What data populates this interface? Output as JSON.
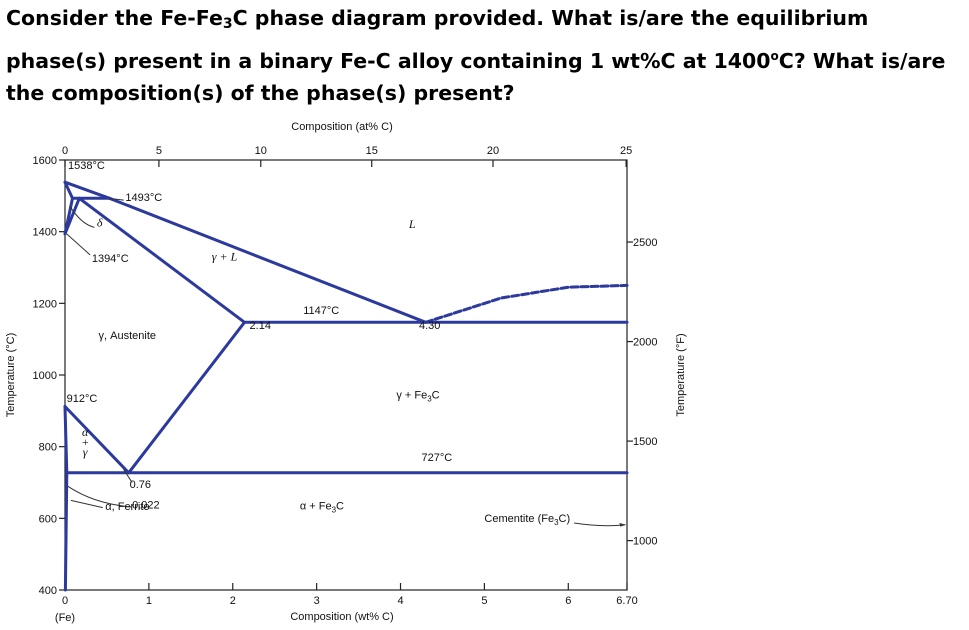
{
  "question": {
    "line1": "Consider the Fe-Fe",
    "sub1": "3",
    "line1b": "C phase diagram provided.  What is/are the equilibrium phase(s) present in a binary Fe-C alloy containing 1 wt%C at 1400",
    "deg": "o",
    "line1c": "C?  What is/are the composition(s) of the phase(s) present?"
  },
  "chart_data": {
    "type": "phase-diagram",
    "title": "",
    "top_axis": {
      "label": "Composition (at% C)",
      "ticks": [
        "0",
        "5",
        "10",
        "15",
        "20",
        "25"
      ],
      "values": [
        0,
        5,
        10,
        15,
        20,
        25
      ]
    },
    "bottom_axis": {
      "label": "Composition (wt% C)",
      "ticks": [
        "0",
        "1",
        "2",
        "3",
        "4",
        "5",
        "6",
        "6.70"
      ],
      "values": [
        0,
        1,
        2,
        3,
        4,
        5,
        6,
        6.7
      ],
      "origin_note": "(Fe)"
    },
    "left_axis": {
      "label": "Temperature (°C)",
      "ticks": [
        "400",
        "600",
        "800",
        "1000",
        "1200",
        "1400",
        "1600"
      ],
      "values": [
        400,
        600,
        800,
        1000,
        1200,
        1400,
        1600
      ],
      "range": [
        400,
        1600
      ]
    },
    "right_axis": {
      "label": "Temperature (°F)",
      "ticks": [
        "1000",
        "1500",
        "2000",
        "2500"
      ],
      "values": [
        1000,
        1500,
        2000,
        2500
      ]
    },
    "composition_range_wt": [
      0,
      6.7
    ],
    "phase_labels": [
      "L",
      "δ",
      "γ + L",
      "γ, Austenite",
      "γ + Fe3C",
      "α + Fe3C",
      "α, Ferrite",
      "Cementite (Fe3C)"
    ],
    "phase_label_parts": {
      "gamma_fe3c_a": "γ + Fe",
      "gamma_fe3c_sub": "3",
      "gamma_fe3c_b": "C",
      "alpha_fe3c_a": "α + Fe",
      "alpha_fe3c_sub": "3",
      "alpha_fe3c_b": "C",
      "cementite_a": "Cementite (Fe",
      "cementite_sub": "3",
      "cementite_b": "C)",
      "alpha_gamma_col": [
        "α",
        "+",
        "γ"
      ]
    },
    "annotations": [
      "1538°C",
      "1493°C",
      "1394°C",
      "1147°C",
      "912°C",
      "727°C",
      "2.14",
      "4.30",
      "0.76",
      "0.022"
    ],
    "invariants": [
      {
        "name": "peritectic",
        "T": 1493
      },
      {
        "name": "eutectic",
        "T": 1147,
        "C": 4.3
      },
      {
        "name": "eutectoid",
        "T": 727,
        "C": 0.76
      }
    ],
    "lines": {
      "liquidus": [
        [
          0,
          1538
        ],
        [
          0.53,
          1493
        ],
        [
          4.3,
          1147
        ]
      ],
      "liquidus_cementite": [
        [
          4.3,
          1147
        ],
        [
          5.2,
          1215
        ],
        [
          6.0,
          1245
        ],
        [
          6.7,
          1250
        ]
      ],
      "solidus_gamma": [
        [
          0.17,
          1493
        ],
        [
          2.14,
          1147
        ]
      ],
      "acm": [
        [
          2.14,
          1147
        ],
        [
          0.76,
          727
        ]
      ],
      "a3": [
        [
          0,
          912
        ],
        [
          0.76,
          727
        ]
      ],
      "gamma_alpha_left": [
        [
          0,
          912
        ],
        [
          0.022,
          727
        ]
      ],
      "alpha_solvus": [
        [
          0.022,
          727
        ],
        [
          0.005,
          400
        ]
      ],
      "delta_loop": [
        [
          0,
          1538
        ],
        [
          0.09,
          1493
        ],
        [
          0,
          1394
        ]
      ],
      "gamma_delta": [
        [
          0,
          1394
        ],
        [
          0.17,
          1493
        ]
      ],
      "peritectic_line": [
        [
          0.09,
          1493
        ],
        [
          0.53,
          1493
        ]
      ],
      "eutectic_line": [
        [
          2.14,
          1147
        ],
        [
          6.7,
          1147
        ]
      ],
      "eutectoid_line": [
        [
          0.022,
          727
        ],
        [
          6.7,
          727
        ]
      ]
    }
  }
}
